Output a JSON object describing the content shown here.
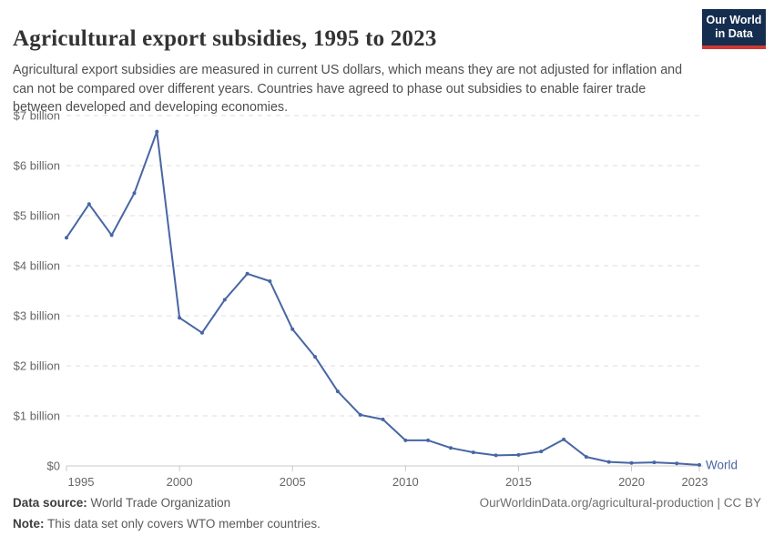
{
  "header": {
    "title": "Agricultural export subsidies, 1995 to 2023",
    "subtitle": "Agricultural export subsidies are measured in current US dollars, which means they are not adjusted for inflation and can not be compared over different years. Countries have agreed to phase out subsidies to enable fairer trade between developed and developing economies.",
    "logo": {
      "line1": "Our World",
      "line2": "in Data"
    }
  },
  "chart_data": {
    "type": "line",
    "title": "Agricultural export subsidies, 1995 to 2023",
    "xlabel": "",
    "ylabel": "",
    "xlim": [
      1995,
      2023
    ],
    "ylim": [
      0,
      7
    ],
    "grid": "horizontal-dashed",
    "legend_position": "end-of-line",
    "x": [
      1995,
      1996,
      1997,
      1998,
      1999,
      2000,
      2001,
      2002,
      2003,
      2004,
      2005,
      2006,
      2007,
      2008,
      2009,
      2010,
      2011,
      2012,
      2013,
      2014,
      2015,
      2016,
      2017,
      2018,
      2019,
      2020,
      2021,
      2022,
      2023
    ],
    "series": [
      {
        "name": "World",
        "unit": "current US$ billion",
        "values": [
          4.56,
          5.23,
          4.61,
          5.45,
          6.68,
          2.96,
          2.66,
          3.32,
          3.84,
          3.69,
          2.73,
          2.18,
          1.49,
          1.02,
          0.93,
          0.51,
          0.51,
          0.36,
          0.27,
          0.21,
          0.22,
          0.29,
          0.53,
          0.18,
          0.08,
          0.06,
          0.07,
          0.05,
          0.02
        ]
      }
    ],
    "x_ticks": [
      1995,
      2000,
      2005,
      2010,
      2015,
      2020,
      2023
    ],
    "y_ticks": [
      {
        "value": 0,
        "label": "$0"
      },
      {
        "value": 1,
        "label": "$1 billion"
      },
      {
        "value": 2,
        "label": "$2 billion"
      },
      {
        "value": 3,
        "label": "$3 billion"
      },
      {
        "value": 4,
        "label": "$4 billion"
      },
      {
        "value": 5,
        "label": "$5 billion"
      },
      {
        "value": 6,
        "label": "$6 billion"
      },
      {
        "value": 7,
        "label": "$7 billion"
      }
    ],
    "end_label": "World"
  },
  "footer": {
    "data_source_label": "Data source:",
    "data_source_value": " World Trade Organization",
    "note_label": "Note:",
    "note_value": " This data set only covers WTO member countries.",
    "link": "OurWorldinData.org/agricultural-production | CC BY"
  },
  "colors": {
    "series_blue": "#4866a4",
    "grid_dashed": "#dcdcdc",
    "axis_line": "#c8c8c8",
    "axis_text": "#666666",
    "logo_bg": "#152d4f",
    "logo_stripe": "#d13832"
  }
}
